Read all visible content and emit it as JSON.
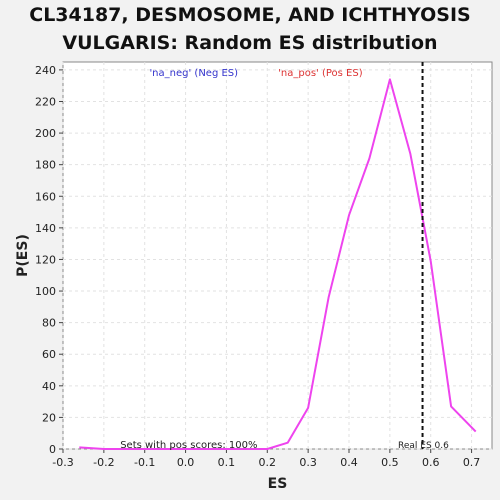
{
  "chart_data": {
    "type": "line",
    "title_lines": [
      "CL34187, DESMOSOME, AND ICHTHYOSIS",
      "VULGARIS: Random ES distribution"
    ],
    "xlabel": "ES",
    "ylabel": "P(ES)",
    "xlim": [
      -0.3,
      0.75
    ],
    "ylim": [
      0,
      245
    ],
    "x_ticks": [
      -0.3,
      -0.2,
      -0.1,
      0.0,
      0.1,
      0.2,
      0.3,
      0.4,
      0.5,
      0.6,
      0.7
    ],
    "x_tick_labels": [
      "-0.3",
      "-0.2",
      "-0.1",
      "0.0",
      "0.1",
      "0.2",
      "0.3",
      "0.4",
      "0.5",
      "0.6",
      "0.7"
    ],
    "y_ticks": [
      0,
      20,
      40,
      60,
      80,
      100,
      120,
      140,
      160,
      180,
      200,
      220,
      240
    ],
    "y_tick_labels": [
      "0",
      "20",
      "40",
      "60",
      "80",
      "100",
      "120",
      "140",
      "160",
      "180",
      "200",
      "220",
      "240"
    ],
    "grid": true,
    "series": [
      {
        "color": "#ee44ee",
        "x": [
          -0.26,
          -0.2,
          -0.15,
          -0.1,
          -0.05,
          0.0,
          0.05,
          0.1,
          0.15,
          0.2,
          0.25,
          0.3,
          0.35,
          0.4,
          0.45,
          0.5,
          0.55,
          0.6,
          0.65,
          0.71
        ],
        "y": [
          1,
          0,
          0,
          0,
          0,
          0,
          0,
          0,
          0,
          0,
          4,
          26,
          96,
          148,
          184,
          234,
          187,
          119,
          27,
          11
        ]
      }
    ],
    "real_es": 0.58,
    "real_es_label": "Real ES 0.6",
    "legend": {
      "neg_label": "'na_neg' (Neg ES)",
      "neg_color": "#3333cc",
      "pos_label": "'na_pos' (Pos ES)",
      "pos_color": "#dd3333",
      "placement": "top"
    },
    "annotation": "Sets with pos scores: 100%"
  }
}
